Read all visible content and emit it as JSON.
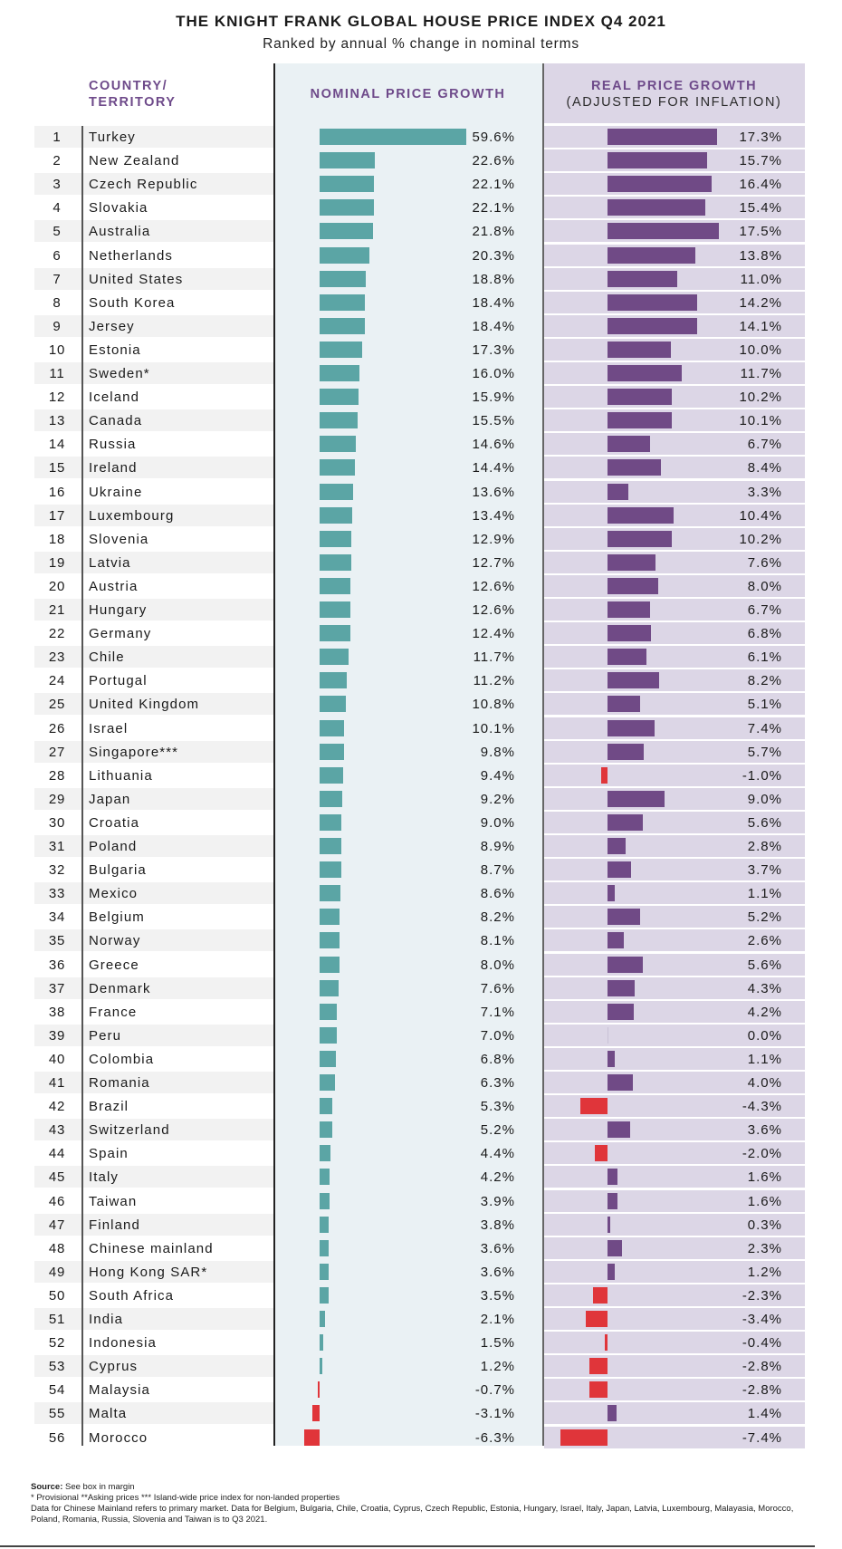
{
  "header": {
    "title": "THE KNIGHT FRANK GLOBAL HOUSE PRICE INDEX Q4 2021",
    "subtitle": "Ranked by annual % change in nominal terms"
  },
  "columns": {
    "country_line1": "COUNTRY/",
    "country_line2": "TERRITORY",
    "nominal": "NOMINAL PRICE GROWTH",
    "real_line1": "REAL PRICE GROWTH",
    "real_line2": "(ADJUSTED FOR INFLATION)"
  },
  "colors": {
    "nominal_positive": "#5ba5a5",
    "real_positive": "#704a86",
    "negative": "#e0353a",
    "header_text": "#6e4a8a"
  },
  "chart_data": {
    "type": "bar",
    "title": "THE KNIGHT FRANK GLOBAL HOUSE PRICE INDEX Q4 2021",
    "subtitle": "Ranked by annual % change in nominal terms",
    "xlabel": "",
    "ylabel": "",
    "orientation": "horizontal",
    "categories": [
      "Turkey",
      "New Zealand",
      "Czech Republic",
      "Slovakia",
      "Australia",
      "Netherlands",
      "United States",
      "South Korea",
      "Jersey",
      "Estonia",
      "Sweden*",
      "Iceland",
      "Canada",
      "Russia",
      "Ireland",
      "Ukraine",
      "Luxembourg",
      "Slovenia",
      "Latvia",
      "Austria",
      "Hungary",
      "Germany",
      "Chile",
      "Portugal",
      "United Kingdom",
      "Israel",
      "Singapore***",
      "Lithuania",
      "Japan",
      "Croatia",
      "Poland",
      "Bulgaria",
      "Mexico",
      "Belgium",
      "Norway",
      "Greece",
      "Denmark",
      "France",
      "Peru",
      "Colombia",
      "Romania",
      "Brazil",
      "Switzerland",
      "Spain",
      "Italy",
      "Taiwan",
      "Finland",
      "Chinese mainland",
      "Hong Kong SAR*",
      "South Africa",
      "India",
      "Indonesia",
      "Cyprus",
      "Malaysia",
      "Malta",
      "Morocco"
    ],
    "ranks": [
      1,
      2,
      3,
      4,
      5,
      6,
      7,
      8,
      9,
      10,
      11,
      12,
      13,
      14,
      15,
      16,
      17,
      18,
      19,
      20,
      21,
      22,
      23,
      24,
      25,
      26,
      27,
      28,
      29,
      30,
      31,
      32,
      33,
      34,
      35,
      36,
      37,
      38,
      39,
      40,
      41,
      42,
      43,
      44,
      45,
      46,
      47,
      48,
      49,
      50,
      51,
      52,
      53,
      54,
      55,
      56
    ],
    "series": [
      {
        "name": "NOMINAL PRICE GROWTH",
        "unit": "%",
        "values": [
          59.6,
          22.6,
          22.1,
          22.1,
          21.8,
          20.3,
          18.8,
          18.4,
          18.4,
          17.3,
          16.0,
          15.9,
          15.5,
          14.6,
          14.4,
          13.6,
          13.4,
          12.9,
          12.7,
          12.6,
          12.6,
          12.4,
          11.7,
          11.2,
          10.8,
          10.1,
          9.8,
          9.4,
          9.2,
          9.0,
          8.9,
          8.7,
          8.6,
          8.2,
          8.1,
          8.0,
          7.6,
          7.1,
          7.0,
          6.8,
          6.3,
          5.3,
          5.2,
          4.4,
          4.2,
          3.9,
          3.8,
          3.6,
          3.6,
          3.5,
          2.1,
          1.5,
          1.2,
          -0.7,
          -3.1,
          -6.3
        ]
      },
      {
        "name": "REAL PRICE GROWTH (ADJUSTED FOR INFLATION)",
        "unit": "%",
        "values": [
          17.3,
          15.7,
          16.4,
          15.4,
          17.5,
          13.8,
          11.0,
          14.2,
          14.1,
          10.0,
          11.7,
          10.2,
          10.1,
          6.7,
          8.4,
          3.3,
          10.4,
          10.2,
          7.6,
          8.0,
          6.7,
          6.8,
          6.1,
          8.2,
          5.1,
          7.4,
          5.7,
          -1.0,
          9.0,
          5.6,
          2.8,
          3.7,
          1.1,
          5.2,
          2.6,
          5.6,
          4.3,
          4.2,
          0.0,
          1.1,
          4.0,
          -4.3,
          3.6,
          -2.0,
          1.6,
          1.6,
          0.3,
          2.3,
          1.2,
          -2.3,
          -3.4,
          -0.4,
          -2.8,
          -2.8,
          1.4,
          -7.4
        ]
      }
    ],
    "grid": false,
    "legend": "none"
  },
  "footer": {
    "source_label": "Source:",
    "source_text": " See box in margin",
    "notes": "* Provisional **Asking prices *** Island-wide price index for non-landed properties",
    "data_note": "Data for Chinese Mainland refers to primary market. Data for Belgium, Bulgaria, Chile, Croatia, Cyprus, Czech Republic, Estonia, Hungary, Israel, Italy, Japan, Latvia, Luxembourg, Malayasia, Morocco, Poland, Romania, Russia, Slovenia and Taiwan is to Q3 2021."
  }
}
